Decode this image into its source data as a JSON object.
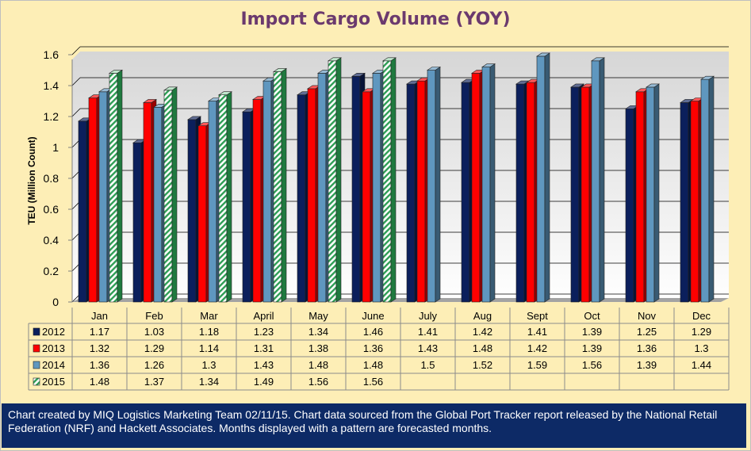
{
  "chart_data": {
    "type": "bar",
    "title": "Import Cargo Volume (YOY)",
    "ylabel": "TEU (Million Count)",
    "xlabel": "",
    "ylim": [
      0,
      1.6
    ],
    "yticks": [
      "0",
      "0.2",
      "0.4",
      "0.6",
      "0.8",
      "1",
      "1.2",
      "1.4",
      "1.6"
    ],
    "grid": true,
    "legend": "data-table",
    "categories": [
      "Jan",
      "Feb",
      "Mar",
      "April",
      "May",
      "June",
      "July",
      "Aug",
      "Sept",
      "Oct",
      "Nov",
      "Dec"
    ],
    "series": [
      {
        "name": "2012",
        "color": "#0b1f5c",
        "values": [
          1.17,
          1.03,
          1.18,
          1.23,
          1.34,
          1.46,
          1.41,
          1.42,
          1.41,
          1.39,
          1.25,
          1.29
        ]
      },
      {
        "name": "2013",
        "color": "#ff0000",
        "values": [
          1.32,
          1.29,
          1.14,
          1.31,
          1.38,
          1.36,
          1.43,
          1.48,
          1.42,
          1.39,
          1.36,
          1.3
        ]
      },
      {
        "name": "2014",
        "color": "#5f97bf",
        "values": [
          1.36,
          1.26,
          1.3,
          1.43,
          1.48,
          1.48,
          1.5,
          1.52,
          1.59,
          1.56,
          1.39,
          1.44
        ]
      },
      {
        "name": "2015",
        "color": "#2e9e55",
        "pattern": "hatched",
        "values": [
          1.48,
          1.37,
          1.34,
          1.49,
          1.56,
          1.56,
          null,
          null,
          null,
          null,
          null,
          null
        ]
      }
    ]
  },
  "footer": {
    "note": "Chart created by MIQ Logistics Marketing Team 02/11/15. Chart data sourced from the Global Port Tracker report released by the National Retail Federation (NRF) and Hackett Associates. Months displayed with a pattern are forecasted months."
  }
}
